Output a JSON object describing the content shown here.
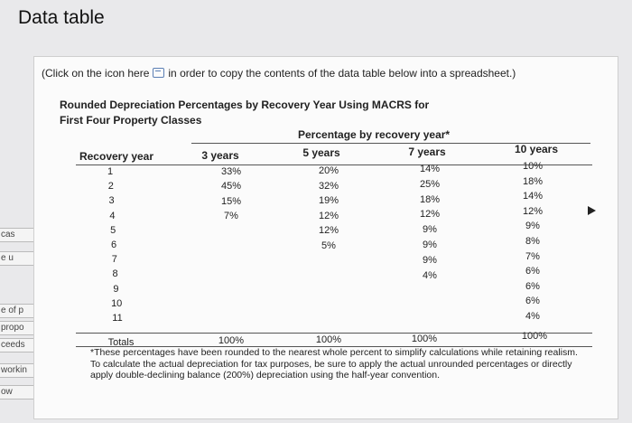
{
  "window": {
    "title": "Data table"
  },
  "instructions": {
    "prefix": "(Click on the icon here",
    "suffix": "in order to copy the contents of the data table below into a spreadsheet.)"
  },
  "table_title": {
    "line1": "Rounded Depreciation Percentages by Recovery Year Using MACRS for",
    "line2": "First Four Property Classes"
  },
  "table": {
    "group_header": "Percentage by recovery year*",
    "col_recovery": "Recovery year",
    "columns": [
      "3 years",
      "5 years",
      "7 years",
      "10 years"
    ],
    "rows": [
      {
        "year": "1",
        "vals": [
          "33%",
          "20%",
          "14%",
          "10%"
        ]
      },
      {
        "year": "2",
        "vals": [
          "45%",
          "32%",
          "25%",
          "18%"
        ]
      },
      {
        "year": "3",
        "vals": [
          "15%",
          "19%",
          "18%",
          "14%"
        ]
      },
      {
        "year": "4",
        "vals": [
          "7%",
          "12%",
          "12%",
          "12%"
        ]
      },
      {
        "year": "5",
        "vals": [
          "",
          "12%",
          "9%",
          "9%"
        ]
      },
      {
        "year": "6",
        "vals": [
          "",
          "5%",
          "9%",
          "8%"
        ]
      },
      {
        "year": "7",
        "vals": [
          "",
          "",
          "9%",
          "7%"
        ]
      },
      {
        "year": "8",
        "vals": [
          "",
          "",
          "4%",
          "6%"
        ]
      },
      {
        "year": "9",
        "vals": [
          "",
          "",
          "",
          "6%"
        ]
      },
      {
        "year": "10",
        "vals": [
          "",
          "",
          "",
          "6%"
        ]
      },
      {
        "year": "11",
        "vals": [
          "",
          "",
          "",
          "4%"
        ]
      }
    ],
    "totals_label": "Totals",
    "totals": [
      "100%",
      "100%",
      "100%",
      "100%"
    ]
  },
  "footnote": "*These percentages have been rounded to the nearest whole percent to simplify calculations while retaining realism. To calculate the actual depreciation for tax purposes, be sure to apply the actual unrounded percentages or directly apply double-declining balance (200%) depreciation using the half-year convention.",
  "background_tabs": [
    "cas",
    "e u",
    "e of p",
    "propo",
    "ceeds",
    "workin",
    "ow"
  ]
}
